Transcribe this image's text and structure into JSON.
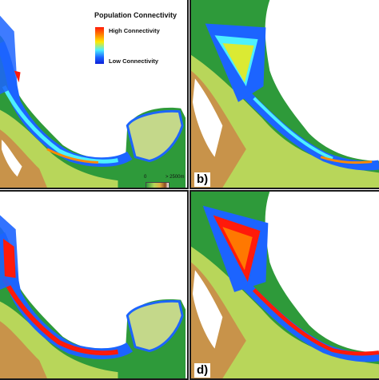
{
  "legend": {
    "title": "Population Connectivity",
    "high_label": "High Connectivity",
    "low_label": "Low Connectivity",
    "elevation_min": "0",
    "elevation_max": "> 2500m"
  },
  "panels": [
    {
      "id": "a",
      "letter": ""
    },
    {
      "id": "b",
      "letter": "b)"
    },
    {
      "id": "c",
      "letter": ""
    },
    {
      "id": "d",
      "letter": "d)"
    }
  ],
  "colors": {
    "high": "#ff1a0a",
    "mid": "#ffe800",
    "low": "#0c1fd9",
    "lowland": "#2e9a3a",
    "highland": "#8a4a20",
    "ocean": "#ffffff"
  }
}
